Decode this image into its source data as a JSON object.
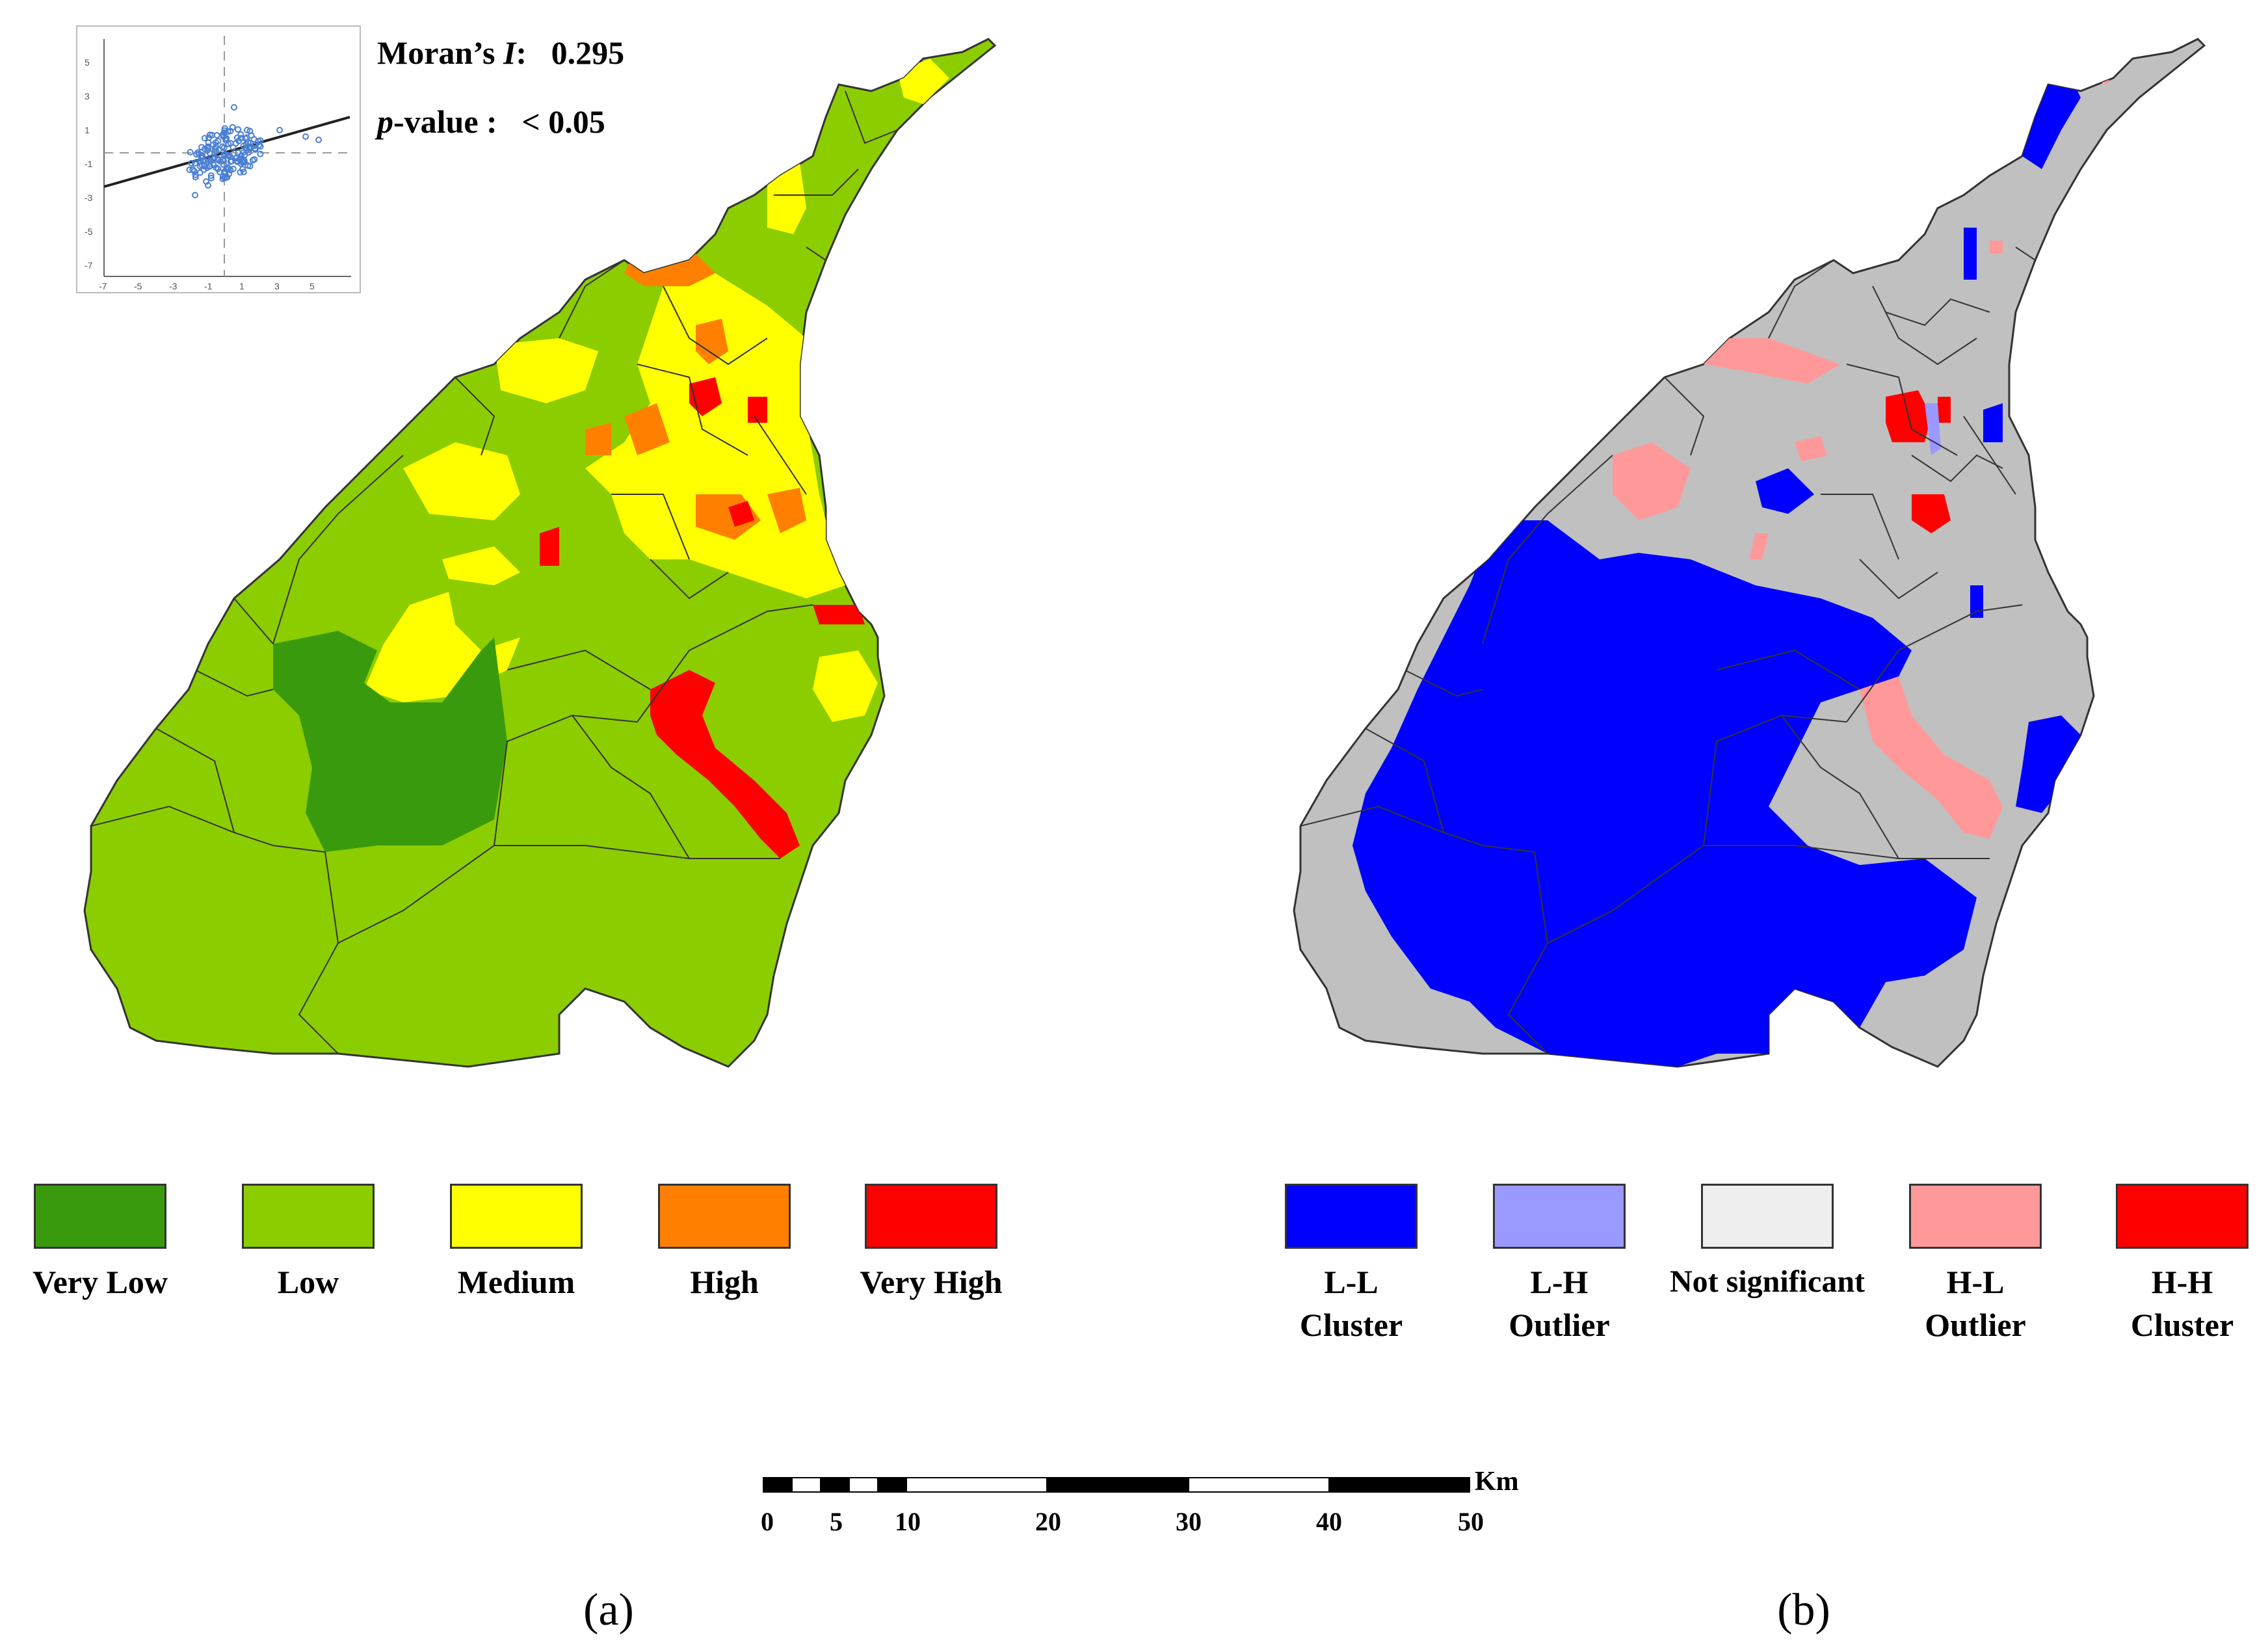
{
  "panel_a": {
    "label": "(a)",
    "stats": {
      "morans_label": "Moran’s",
      "morans_symbol": "I",
      "morans_value": "0.295",
      "p_label": "p",
      "p_suffix": "-value :",
      "p_value": "< 0.05"
    },
    "scatter": {
      "x_ticks": [
        "-7",
        "-5",
        "-3",
        "-1",
        "1",
        "3",
        "5"
      ],
      "y_ticks": [
        "5",
        "3",
        "1",
        "-1",
        "-3",
        "-5",
        "-7"
      ]
    },
    "legend": [
      {
        "label": "Very Low",
        "color": "#3a9a0e"
      },
      {
        "label": "Low",
        "color": "#8ccd00"
      },
      {
        "label": "Medium",
        "color": "#ffff00"
      },
      {
        "label": "High",
        "color": "#ff8000"
      },
      {
        "label": "Very High",
        "color": "#ff0000"
      }
    ]
  },
  "panel_b": {
    "label": "(b)",
    "legend": [
      {
        "line1": "L-L",
        "line2": "Cluster",
        "color": "#0000ff"
      },
      {
        "line1": "L-H",
        "line2": "Outlier",
        "color": "#9999ff"
      },
      {
        "line1": "Not significant",
        "line2": "",
        "color": "#eeeeee"
      },
      {
        "line1": "H-L",
        "line2": "Outlier",
        "color": "#ff9999"
      },
      {
        "line1": "H-H",
        "line2": "Cluster",
        "color": "#ff0000"
      }
    ]
  },
  "scale_bar": {
    "unit": "Km",
    "ticks": [
      "0",
      "5",
      "10",
      "20",
      "30",
      "40",
      "50"
    ]
  }
}
